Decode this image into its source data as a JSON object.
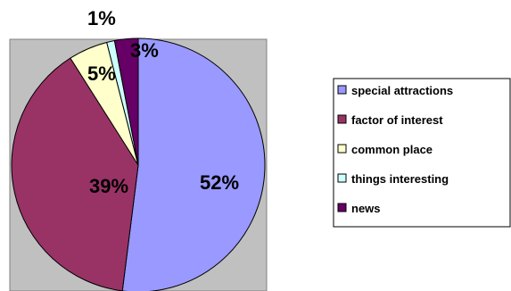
{
  "chart_data": {
    "type": "pie",
    "categories": [
      "special attractions",
      "factor of interest",
      "common place",
      "things interesting",
      "news"
    ],
    "values": [
      52,
      39,
      5,
      1,
      3
    ],
    "labels": [
      "52%",
      "39%",
      "5%",
      "1%",
      "3%"
    ],
    "colors": [
      "#9999ff",
      "#993366",
      "#ffffcc",
      "#ccffff",
      "#660066"
    ],
    "legend_position": "right",
    "plot_area_background": "#c0c0c0"
  }
}
